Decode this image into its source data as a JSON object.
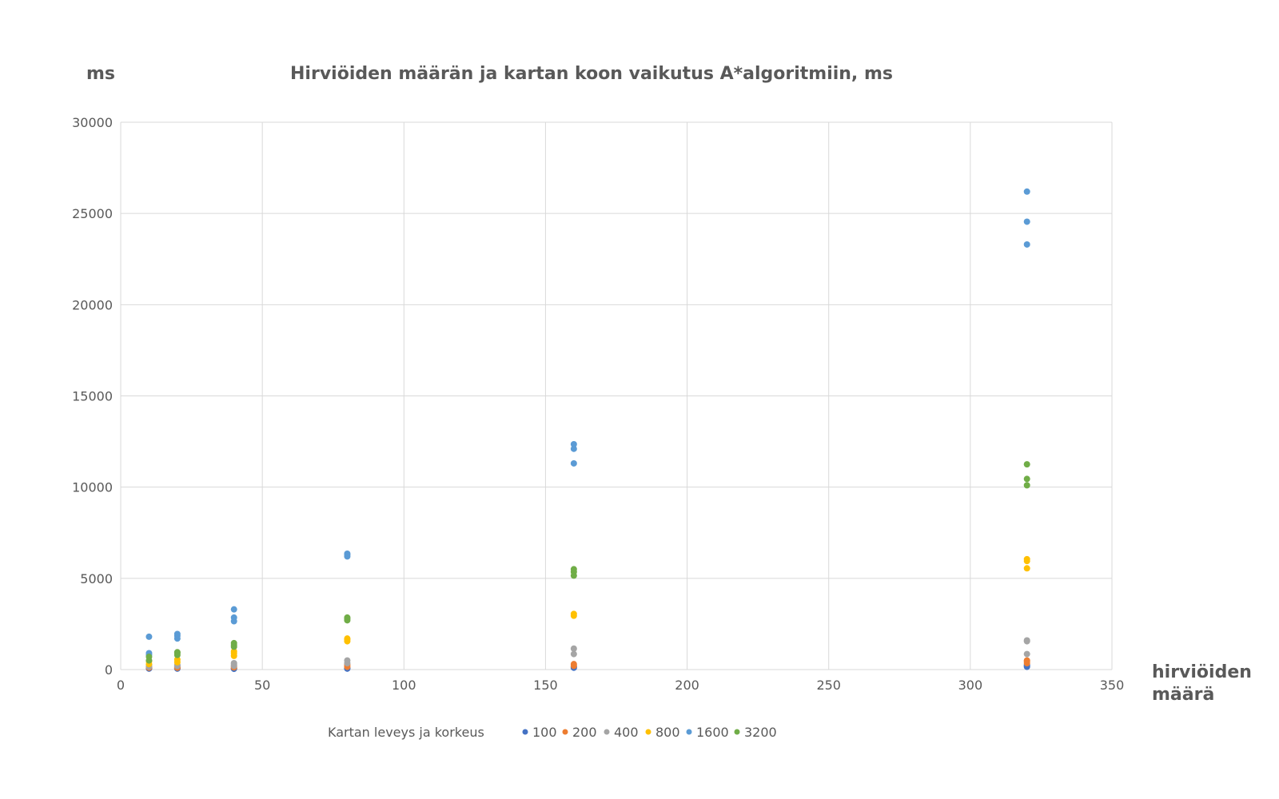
{
  "chart_data": {
    "type": "scatter",
    "title": "Hirviöiden määrän ja kartan koon vaikutus A*algoritmiin, ms",
    "ylabel": "ms",
    "xlabel_lines": [
      "hirviöiden",
      "määrä"
    ],
    "xlim": [
      0,
      350
    ],
    "ylim": [
      0,
      30000
    ],
    "x_ticks": [
      0,
      50,
      100,
      150,
      200,
      250,
      300,
      350
    ],
    "y_ticks": [
      0,
      5000,
      10000,
      15000,
      20000,
      25000,
      30000
    ],
    "grid": true,
    "legend_title": "Kartan leveys ja korkeus",
    "legend_position": "bottom",
    "series": [
      {
        "name": "100",
        "color": "#4472C4",
        "points": [
          [
            10,
            50
          ],
          [
            10,
            80
          ],
          [
            20,
            50
          ],
          [
            20,
            70
          ],
          [
            40,
            40
          ],
          [
            40,
            60
          ],
          [
            80,
            50
          ],
          [
            80,
            80
          ],
          [
            160,
            100
          ],
          [
            160,
            150
          ],
          [
            320,
            150
          ],
          [
            320,
            200
          ],
          [
            320,
            250
          ]
        ]
      },
      {
        "name": "200",
        "color": "#ED7D31",
        "points": [
          [
            10,
            100
          ],
          [
            10,
            150
          ],
          [
            20,
            100
          ],
          [
            20,
            150
          ],
          [
            40,
            120
          ],
          [
            40,
            180
          ],
          [
            80,
            150
          ],
          [
            80,
            250
          ],
          [
            160,
            200
          ],
          [
            160,
            300
          ],
          [
            320,
            350
          ],
          [
            320,
            450
          ],
          [
            320,
            500
          ]
        ]
      },
      {
        "name": "400",
        "color": "#A5A5A5",
        "points": [
          [
            10,
            150
          ],
          [
            10,
            250
          ],
          [
            20,
            200
          ],
          [
            20,
            250
          ],
          [
            40,
            200
          ],
          [
            40,
            300
          ],
          [
            40,
            350
          ],
          [
            80,
            350
          ],
          [
            80,
            500
          ],
          [
            160,
            850
          ],
          [
            160,
            1150
          ],
          [
            320,
            850
          ],
          [
            320,
            1550
          ],
          [
            320,
            1600
          ]
        ]
      },
      {
        "name": "800",
        "color": "#FFC000",
        "points": [
          [
            10,
            300
          ],
          [
            10,
            450
          ],
          [
            20,
            400
          ],
          [
            20,
            550
          ],
          [
            40,
            750
          ],
          [
            40,
            900
          ],
          [
            40,
            1000
          ],
          [
            80,
            1550
          ],
          [
            80,
            1650
          ],
          [
            80,
            1700
          ],
          [
            160,
            2950
          ],
          [
            160,
            3050
          ],
          [
            320,
            5550
          ],
          [
            320,
            5950
          ],
          [
            320,
            6050
          ]
        ]
      },
      {
        "name": "1600",
        "color": "#5B9BD5",
        "points": [
          [
            10,
            800
          ],
          [
            10,
            900
          ],
          [
            10,
            1800
          ],
          [
            20,
            1700
          ],
          [
            20,
            1850
          ],
          [
            20,
            1950
          ],
          [
            40,
            2650
          ],
          [
            40,
            2850
          ],
          [
            40,
            3300
          ],
          [
            80,
            6200
          ],
          [
            80,
            6300
          ],
          [
            80,
            6350
          ],
          [
            160,
            11300
          ],
          [
            160,
            12100
          ],
          [
            160,
            12350
          ],
          [
            320,
            23300
          ],
          [
            320,
            24550
          ],
          [
            320,
            26200
          ]
        ]
      },
      {
        "name": "3200",
        "color": "#70AD47",
        "points": [
          [
            10,
            500
          ],
          [
            10,
            700
          ],
          [
            20,
            800
          ],
          [
            20,
            900
          ],
          [
            20,
            950
          ],
          [
            40,
            1250
          ],
          [
            40,
            1350
          ],
          [
            40,
            1450
          ],
          [
            80,
            2700
          ],
          [
            80,
            2800
          ],
          [
            80,
            2850
          ],
          [
            160,
            5150
          ],
          [
            160,
            5350
          ],
          [
            160,
            5500
          ],
          [
            320,
            10100
          ],
          [
            320,
            10450
          ],
          [
            320,
            11250
          ]
        ]
      }
    ]
  }
}
